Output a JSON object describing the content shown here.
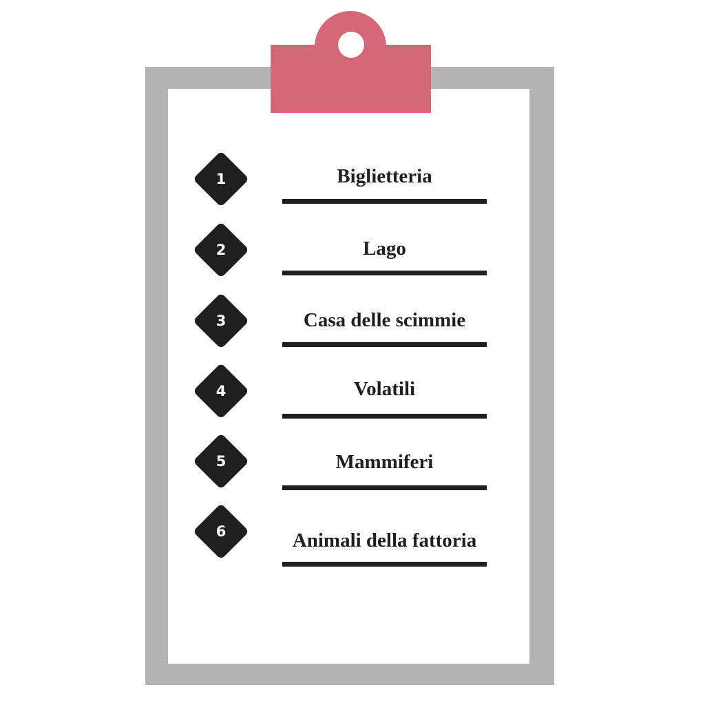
{
  "colors": {
    "clip": "#d46878",
    "board": "#b3b3b3",
    "paper": "#ffffff",
    "ink": "#1f1f1f"
  },
  "checklist": {
    "items": [
      {
        "number": "1",
        "label": "Biglietteria"
      },
      {
        "number": "2",
        "label": "Lago"
      },
      {
        "number": "3",
        "label": "Casa delle scimmie"
      },
      {
        "number": "4",
        "label": "Volatili"
      },
      {
        "number": "5",
        "label": "Mammiferi"
      },
      {
        "number": "6",
        "label": "Animali della fattoria"
      }
    ]
  }
}
